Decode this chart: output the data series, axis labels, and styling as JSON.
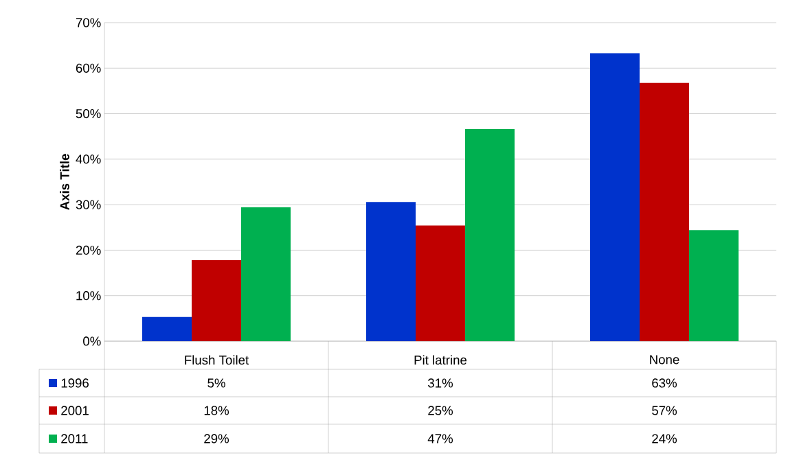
{
  "chart_data": {
    "type": "bar",
    "ylabel": "Axis Title",
    "categories": [
      "Flush Toilet",
      "Pit latrine",
      "None"
    ],
    "series": [
      {
        "name": "1996",
        "color": "#0033cc",
        "values": [
          5.3,
          30.6,
          63.3
        ],
        "value_labels": [
          "5%",
          "31%",
          "63%"
        ]
      },
      {
        "name": "2001",
        "color": "#c00000",
        "values": [
          17.8,
          25.4,
          56.8
        ],
        "value_labels": [
          "18%",
          "25%",
          "57%"
        ]
      },
      {
        "name": "2011",
        "color": "#00b050",
        "values": [
          29.4,
          46.6,
          24.4
        ],
        "value_labels": [
          "29%",
          "47%",
          "24%"
        ]
      }
    ],
    "ylim": [
      0,
      70
    ],
    "yticks": [
      {
        "value": 0,
        "label": "0%"
      },
      {
        "value": 10,
        "label": "10%"
      },
      {
        "value": 20,
        "label": "20%"
      },
      {
        "value": 30,
        "label": "30%"
      },
      {
        "value": 40,
        "label": "40%"
      },
      {
        "value": 50,
        "label": "50%"
      },
      {
        "value": 60,
        "label": "60%"
      },
      {
        "value": 70,
        "label": "70%"
      }
    ],
    "grid": "y",
    "legend": "bottom left"
  }
}
